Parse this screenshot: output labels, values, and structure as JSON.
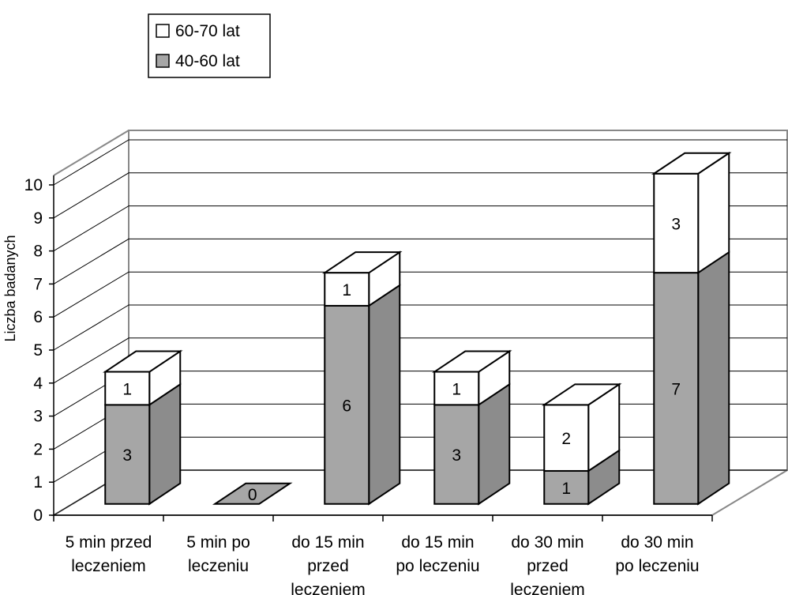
{
  "chart_data": {
    "type": "bar",
    "stacked": true,
    "three_d": true,
    "title": "",
    "xlabel": "",
    "ylabel": "Liczba badanych",
    "ylim": [
      0,
      10
    ],
    "yticks": [
      0,
      1,
      2,
      3,
      4,
      5,
      6,
      7,
      8,
      9,
      10
    ],
    "grid": true,
    "legend_position": "top-left",
    "categories": [
      [
        "5 min przed",
        "leczeniem"
      ],
      [
        "5 min po",
        "leczeniu"
      ],
      [
        "do 15 min",
        "przed",
        "leczeniem"
      ],
      [
        "do 15 min",
        "po leczeniu"
      ],
      [
        "do 30 min",
        "przed",
        "leczeniem"
      ],
      [
        "do 30 min",
        "po leczeniu"
      ]
    ],
    "series": [
      {
        "name": "40-60 lat",
        "color": "#a6a6a6",
        "side_color": "#8c8c8c",
        "top_color": "#bdbdbd",
        "values": [
          3,
          0,
          6,
          3,
          1,
          7
        ]
      },
      {
        "name": "60-70 lat",
        "color": "#ffffff",
        "side_color": "#ffffff",
        "top_color": "#ffffff",
        "values": [
          1,
          0,
          1,
          1,
          2,
          3
        ]
      }
    ],
    "zero_label": "0"
  }
}
